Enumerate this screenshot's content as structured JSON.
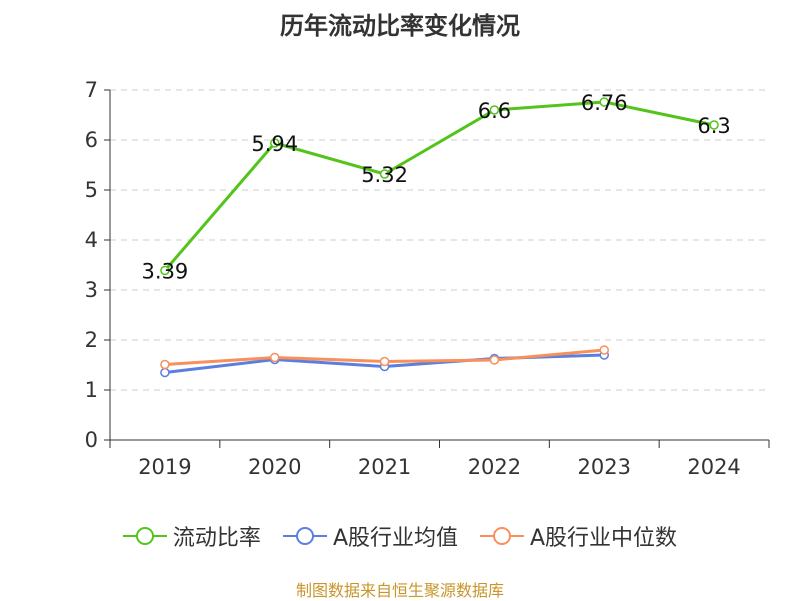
{
  "chart_data": {
    "type": "line",
    "title": "历年流动比率变化情况",
    "categories": [
      "2019",
      "2020",
      "2021",
      "2022",
      "2023",
      "2024"
    ],
    "ylim": [
      0,
      7
    ],
    "yticks": [
      0,
      1,
      2,
      3,
      4,
      5,
      6,
      7
    ],
    "grid": true,
    "legend_position": "bottom",
    "series": [
      {
        "name": "流动比率",
        "color": "#52c41a",
        "values": [
          3.39,
          5.94,
          5.32,
          6.6,
          6.76,
          6.3
        ],
        "show_labels": true
      },
      {
        "name": "A股行业均值",
        "color": "#5b7fdf",
        "values": [
          1.35,
          1.61,
          1.47,
          1.63,
          1.7,
          null
        ],
        "show_labels": false
      },
      {
        "name": "A股行业中位数",
        "color": "#f7905b",
        "values": [
          1.51,
          1.65,
          1.57,
          1.6,
          1.8,
          null
        ],
        "show_labels": false
      }
    ]
  },
  "source_text": "制图数据来自恒生聚源数据库"
}
